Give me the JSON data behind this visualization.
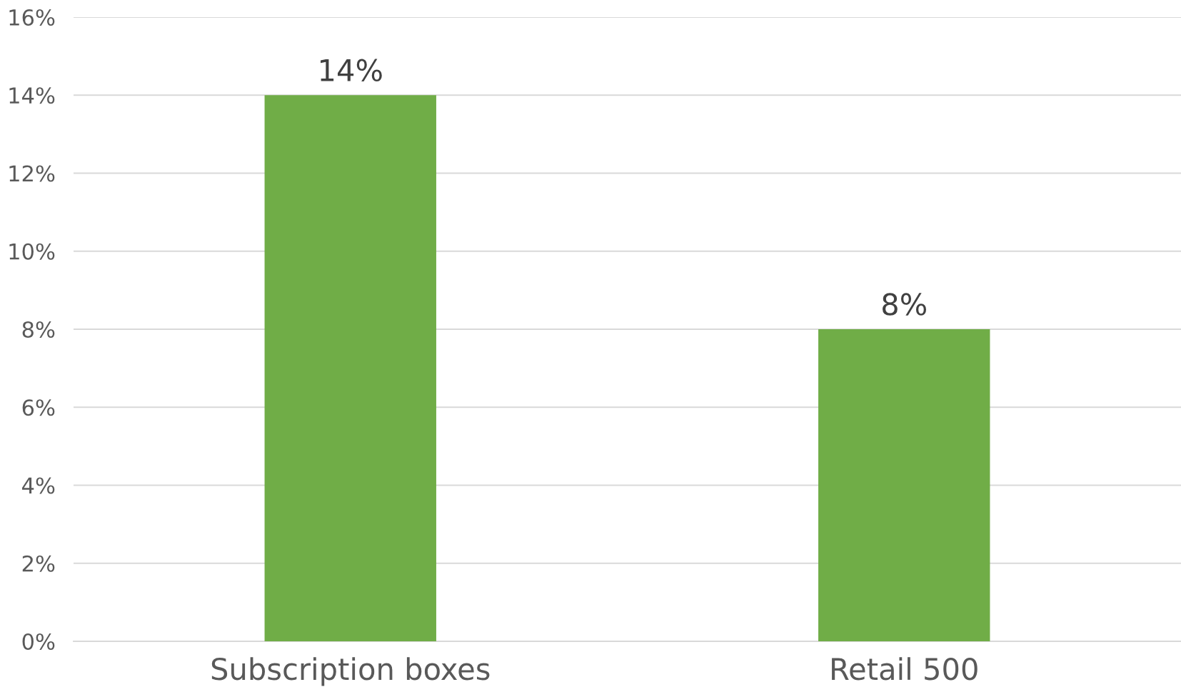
{
  "chart_data": {
    "type": "bar",
    "categories": [
      "Subscription boxes",
      "Retail 500"
    ],
    "values": [
      14,
      8
    ],
    "color": "#70ad47",
    "value_labels": [
      "14%",
      "8%"
    ],
    "ylim": [
      0,
      16
    ],
    "yticks": [
      {
        "value": 0,
        "label": "0%"
      },
      {
        "value": 2,
        "label": "2%"
      },
      {
        "value": 4,
        "label": "4%"
      },
      {
        "value": 6,
        "label": "6%"
      },
      {
        "value": 8,
        "label": "8%"
      },
      {
        "value": 10,
        "label": "10%"
      },
      {
        "value": 12,
        "label": "12%"
      },
      {
        "value": 14,
        "label": "14%"
      },
      {
        "value": 16,
        "label": "16%"
      }
    ],
    "grid": "y"
  }
}
